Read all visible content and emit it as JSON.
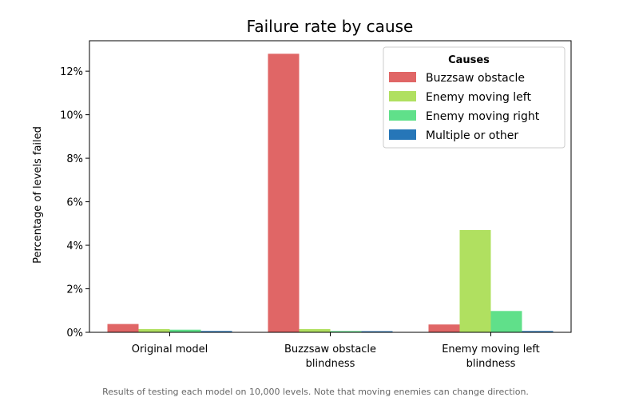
{
  "chart_data": {
    "type": "bar",
    "title": "Failure rate by cause",
    "ylabel": "Percentage of levels failed",
    "xlabel": "",
    "categories": [
      [
        "Original model"
      ],
      [
        "Buzzsaw obstacle",
        "blindness"
      ],
      [
        "Enemy moving left",
        "blindness"
      ]
    ],
    "yticks": [
      0,
      2,
      4,
      6,
      8,
      10,
      12
    ],
    "ytick_suffix": "%",
    "ylim": [
      0,
      13.4
    ],
    "grid": false,
    "legend": {
      "title": "Causes",
      "position": "top-right"
    },
    "series": [
      {
        "name": "Buzzsaw obstacle",
        "color": "#e06666",
        "values": [
          0.38,
          12.8,
          0.36
        ]
      },
      {
        "name": "Enemy moving left",
        "color": "#b0e060",
        "values": [
          0.15,
          0.15,
          4.7
        ]
      },
      {
        "name": "Enemy moving right",
        "color": "#60e08a",
        "values": [
          0.12,
          0.06,
          0.98
        ]
      },
      {
        "name": "Multiple or other",
        "color": "#2676b8",
        "values": [
          0.06,
          0.05,
          0.06
        ]
      }
    ]
  },
  "caption": "Results of testing each model on 10,000 levels. Note that moving enemies can change direction."
}
